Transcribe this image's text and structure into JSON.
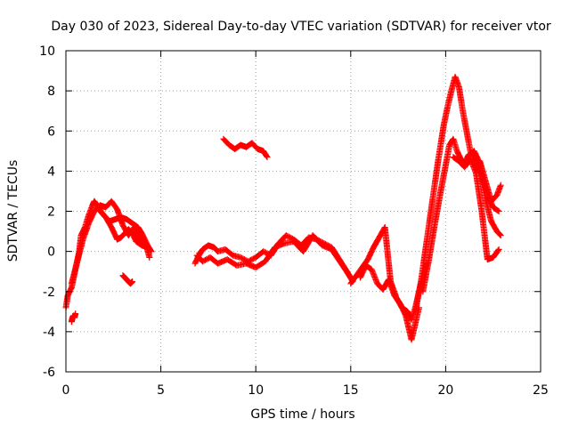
{
  "chart_data": {
    "type": "scatter",
    "title": "Day 030 of 2023, Sidereal Day-to-day VTEC variation (SDTVAR) for receiver vtor",
    "xlabel": "GPS time / hours",
    "ylabel": "SDTVAR / TECUs",
    "xlim": [
      0,
      25
    ],
    "ylim": [
      -6,
      10
    ],
    "xticks": [
      0,
      5,
      10,
      15,
      20,
      25
    ],
    "yticks": [
      -6,
      -4,
      -2,
      0,
      2,
      4,
      6,
      8,
      10
    ],
    "grid": true,
    "marker": "+",
    "series_color": "#ff0000",
    "series": [
      {
        "name": "main-trace-a",
        "x": [
          0.0,
          0.1,
          0.3,
          0.5,
          0.7,
          0.8,
          1.0,
          1.2,
          1.4,
          1.5,
          1.7,
          2.0,
          2.3,
          2.6,
          2.9,
          3.2,
          3.5,
          3.8,
          4.0,
          4.3,
          4.5
        ],
        "y": [
          -2.8,
          -2.2,
          -1.8,
          -0.9,
          0.0,
          0.8,
          1.2,
          1.8,
          2.3,
          2.5,
          2.2,
          1.8,
          1.5,
          1.6,
          1.7,
          1.6,
          1.4,
          1.2,
          0.9,
          0.3,
          0.0
        ]
      },
      {
        "name": "main-trace-b",
        "x": [
          0.3,
          0.6,
          0.9,
          1.2,
          1.5,
          1.8,
          2.1,
          2.4,
          2.7,
          3.0,
          3.3,
          3.6,
          3.9,
          4.2,
          4.4
        ],
        "y": [
          -1.6,
          -0.5,
          0.6,
          1.4,
          2.0,
          2.3,
          2.2,
          2.5,
          2.1,
          1.3,
          0.8,
          1.2,
          0.6,
          0.4,
          -0.3
        ]
      },
      {
        "name": "main-trace-c",
        "x": [
          1.8,
          2.1,
          2.4,
          2.7,
          2.9,
          3.1,
          3.3,
          3.5,
          3.7,
          4.0,
          4.3
        ],
        "y": [
          2.0,
          1.7,
          1.2,
          0.6,
          0.7,
          0.9,
          1.1,
          0.9,
          0.5,
          0.3,
          0.2
        ]
      },
      {
        "name": "small-segment-a",
        "x": [
          0.3,
          0.35,
          0.4,
          0.45,
          0.5
        ],
        "y": [
          -3.5,
          -3.3,
          -3.2,
          -3.3,
          -3.1
        ]
      },
      {
        "name": "small-segment-b",
        "x": [
          3.0,
          3.1,
          3.2,
          3.3,
          3.4,
          3.5
        ],
        "y": [
          -1.2,
          -1.3,
          -1.4,
          -1.5,
          -1.6,
          -1.5
        ]
      },
      {
        "name": "mid-day-a",
        "x": [
          6.8,
          7.0,
          7.2,
          7.5,
          7.8,
          8.0,
          8.4,
          8.8,
          9.2,
          9.6,
          10.0,
          10.4,
          10.8,
          11.2,
          11.6,
          12.0,
          12.4,
          12.8,
          13.2,
          13.6,
          14.0,
          14.4,
          14.8,
          15.1
        ],
        "y": [
          -0.6,
          -0.2,
          0.1,
          0.3,
          0.2,
          0.0,
          0.1,
          -0.2,
          -0.3,
          -0.5,
          -0.3,
          0.0,
          -0.2,
          0.4,
          0.8,
          0.6,
          0.3,
          0.7,
          0.6,
          0.4,
          0.2,
          -0.4,
          -1.0,
          -1.5
        ]
      },
      {
        "name": "mid-day-b",
        "x": [
          6.9,
          7.2,
          7.6,
          8.0,
          8.5,
          9.0,
          9.5,
          10.0,
          10.5,
          11.0,
          11.5,
          12.0,
          12.5,
          13.0,
          13.5,
          14.0,
          14.5,
          15.0
        ],
        "y": [
          -0.2,
          -0.5,
          -0.3,
          -0.6,
          -0.4,
          -0.7,
          -0.6,
          -0.8,
          -0.5,
          0.2,
          0.4,
          0.5,
          0.0,
          0.8,
          0.3,
          0.1,
          -0.6,
          -1.3
        ]
      },
      {
        "name": "isolated-arc",
        "x": [
          8.3,
          8.6,
          8.9,
          9.2,
          9.5,
          9.8,
          10.1,
          10.4,
          10.6
        ],
        "y": [
          5.6,
          5.3,
          5.1,
          5.3,
          5.2,
          5.4,
          5.1,
          5.0,
          4.7
        ]
      },
      {
        "name": "afternoon-dip",
        "x": [
          15.0,
          15.3,
          15.6,
          15.9,
          16.2,
          16.5,
          16.8,
          17.1,
          17.4,
          17.7,
          18.0,
          18.2,
          18.4,
          18.6,
          18.8,
          19.0
        ],
        "y": [
          -1.6,
          -1.2,
          -0.8,
          -0.4,
          0.2,
          0.7,
          1.2,
          -1.5,
          -2.3,
          -2.8,
          -3.0,
          -3.4,
          -2.8,
          -2.0,
          -1.3,
          -0.6
        ]
      },
      {
        "name": "afternoon-dip-b",
        "x": [
          15.5,
          15.8,
          16.1,
          16.4,
          16.7,
          17.0,
          17.3,
          17.6,
          17.9,
          18.2,
          18.4,
          18.6
        ],
        "y": [
          -1.3,
          -0.7,
          -0.9,
          -1.6,
          -1.9,
          -1.4,
          -2.2,
          -2.6,
          -3.2,
          -4.4,
          -3.6,
          -2.8
        ]
      },
      {
        "name": "evening-peak",
        "x": [
          18.4,
          18.7,
          19.0,
          19.3,
          19.6,
          19.9,
          20.1,
          20.3,
          20.5,
          20.7,
          20.9,
          21.1,
          21.3,
          21.6,
          21.9,
          22.2,
          22.5,
          22.8
        ],
        "y": [
          -3.0,
          -1.5,
          0.5,
          2.5,
          4.5,
          6.3,
          7.2,
          8.0,
          8.7,
          8.2,
          7.0,
          6.0,
          5.0,
          4.3,
          3.8,
          2.8,
          2.2,
          2.0
        ]
      },
      {
        "name": "evening-second",
        "x": [
          18.8,
          19.1,
          19.4,
          19.7,
          20.0,
          20.2,
          20.4,
          20.6,
          20.8,
          21.0,
          21.2,
          21.5,
          21.8,
          22.1,
          22.4,
          22.7,
          22.9
        ],
        "y": [
          -2.0,
          -0.5,
          1.2,
          2.8,
          4.3,
          5.3,
          5.6,
          5.0,
          4.6,
          4.4,
          4.8,
          5.0,
          4.4,
          2.6,
          1.5,
          1.0,
          0.8
        ]
      },
      {
        "name": "evening-third",
        "x": [
          20.4,
          20.7,
          21.0,
          21.3,
          21.6,
          21.9,
          22.2,
          22.5,
          22.8
        ],
        "y": [
          4.7,
          4.5,
          4.2,
          4.6,
          3.9,
          2.0,
          -0.4,
          -0.3,
          0.1
        ]
      },
      {
        "name": "evening-fourth",
        "x": [
          21.8,
          22.1,
          22.4,
          22.7,
          22.9
        ],
        "y": [
          4.5,
          3.5,
          2.5,
          2.8,
          3.3
        ]
      }
    ]
  }
}
